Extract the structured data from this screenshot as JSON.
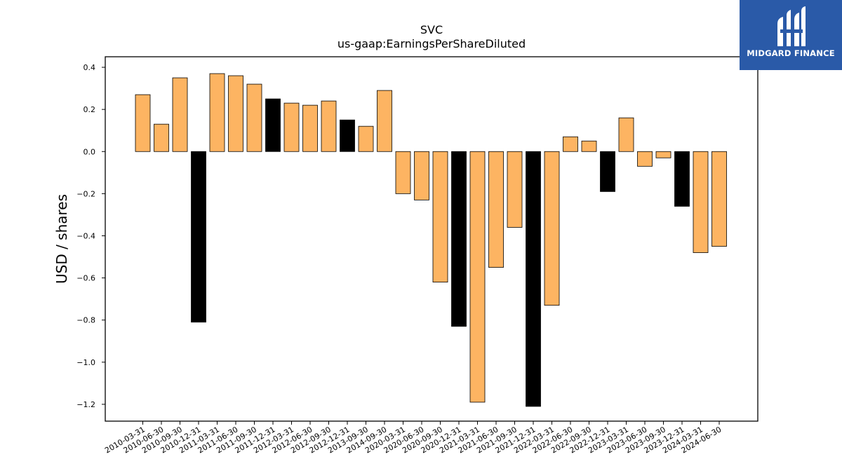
{
  "chart_data": {
    "type": "bar",
    "title": "SVC",
    "subtitle": "us-gaap:EarningsPerShareDiluted",
    "ylabel": "USD / shares",
    "xlabel": "",
    "ylim": [
      -1.28,
      0.45
    ],
    "yticks": [
      0.4,
      0.2,
      0.0,
      -0.2,
      -0.4,
      -0.6,
      -0.8,
      -1.0,
      -1.2
    ],
    "ytick_labels": [
      "0.4",
      "0.2",
      "0.0",
      "−0.2",
      "−0.4",
      "−0.6",
      "−0.8",
      "−1.0",
      "−1.2"
    ],
    "grid": false,
    "colors": {
      "quarter": "#fdb462",
      "annual": "#000000",
      "edge": "#000000"
    },
    "categories": [
      "2010-03-31",
      "2010-06-30",
      "2010-09-30",
      "2010-12-31",
      "2011-03-31",
      "2011-06-30",
      "2011-09-30",
      "2011-12-31",
      "2012-03-31",
      "2012-06-30",
      "2012-09-30",
      "2012-12-31",
      "2013-09-30",
      "2014-09-30",
      "2020-03-31",
      "2020-06-30",
      "2020-09-30",
      "2020-12-31",
      "2021-03-31",
      "2021-06-30",
      "2021-09-30",
      "2021-12-31",
      "2022-03-31",
      "2022-06-30",
      "2022-09-30",
      "2022-12-31",
      "2023-03-31",
      "2023-06-30",
      "2023-09-30",
      "2023-12-31",
      "2024-03-31",
      "2024-06-30"
    ],
    "values": [
      0.27,
      0.13,
      0.35,
      -0.81,
      0.37,
      0.36,
      0.32,
      0.25,
      0.23,
      0.22,
      0.24,
      0.15,
      0.12,
      0.29,
      -0.2,
      -0.23,
      -0.62,
      -0.83,
      -1.19,
      -0.55,
      -0.36,
      -1.21,
      -0.73,
      0.07,
      0.05,
      -0.19,
      0.16,
      -0.07,
      -0.03,
      -0.26,
      -0.48,
      -0.45
    ],
    "bar_kind": [
      "quarter",
      "quarter",
      "quarter",
      "annual",
      "quarter",
      "quarter",
      "quarter",
      "annual",
      "quarter",
      "quarter",
      "quarter",
      "annual",
      "quarter",
      "quarter",
      "quarter",
      "quarter",
      "quarter",
      "annual",
      "quarter",
      "quarter",
      "quarter",
      "annual",
      "quarter",
      "quarter",
      "quarter",
      "annual",
      "quarter",
      "quarter",
      "quarter",
      "annual",
      "quarter",
      "quarter"
    ]
  },
  "logo": {
    "text": "MIDGARD FINANCE",
    "background": "#2a5aa8",
    "icon": "midgard-logo-icon"
  }
}
